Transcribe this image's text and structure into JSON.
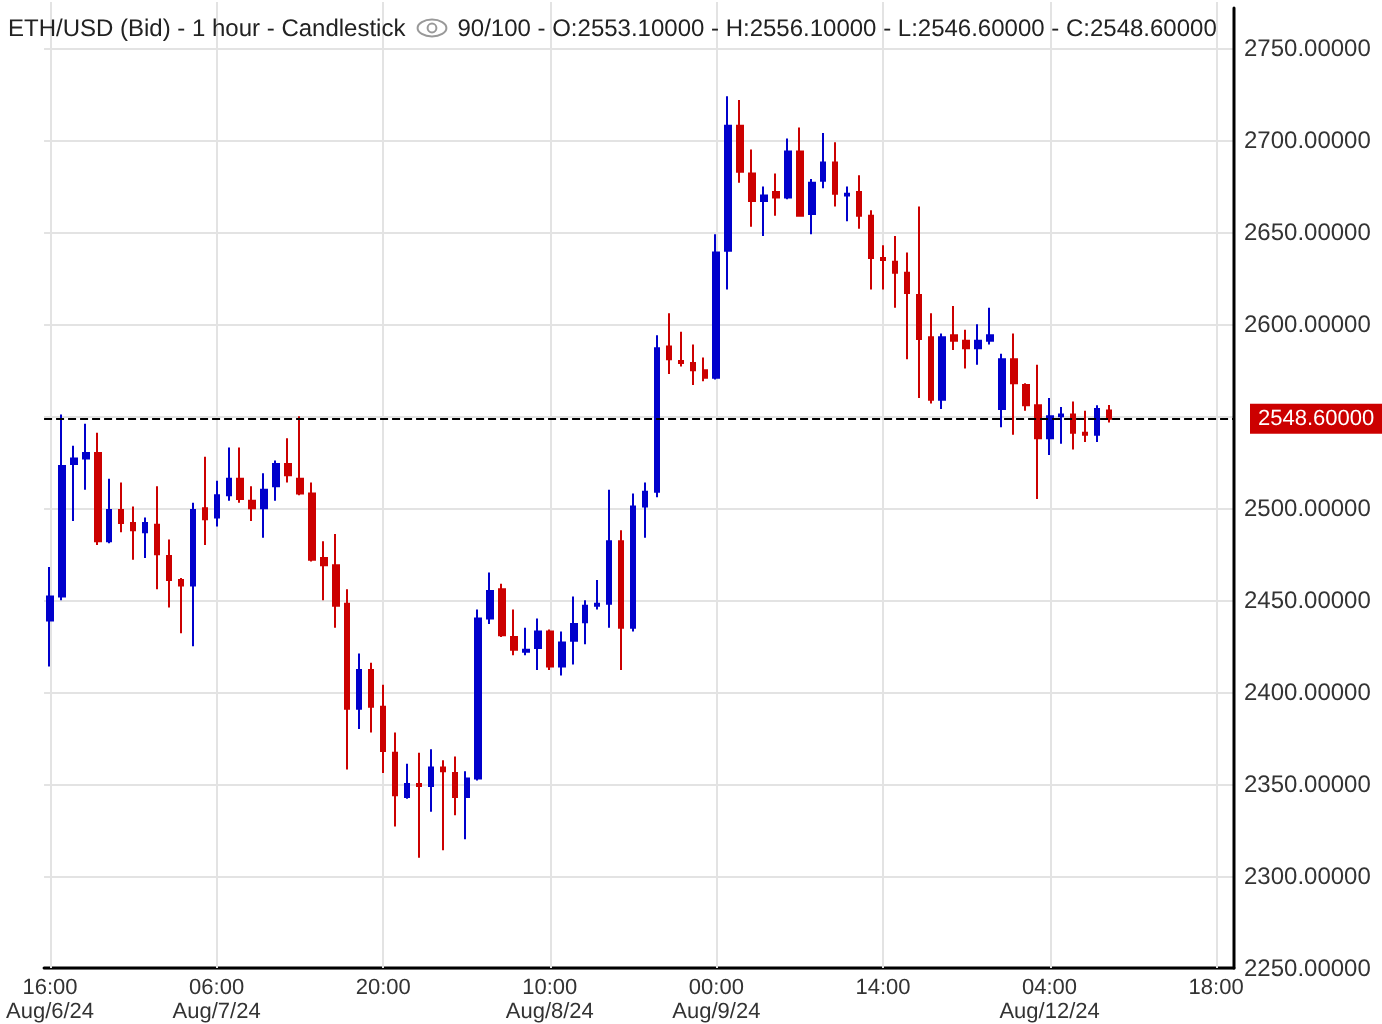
{
  "chart_data": {
    "type": "candlestick",
    "title": "ETH/USD (Bid) - 1 hour - Candlestick",
    "subtitle": "90/100 - O:2553.10000 - H:2556.10000 - L:2546.60000 - C:2548.60000",
    "categories": [
      "16:00\nAug/6/24",
      null,
      null,
      null,
      null,
      null,
      null,
      null,
      null,
      null,
      null,
      null,
      null,
      null,
      "06:00\nAug/7/24",
      null,
      null,
      null,
      null,
      null,
      null,
      null,
      null,
      null,
      null,
      null,
      null,
      null,
      "20:00",
      null,
      null,
      null,
      null,
      null,
      null,
      null,
      null,
      null,
      null,
      null,
      null,
      null,
      "10:00\nAug/8/24",
      null,
      null,
      null,
      null,
      null,
      null,
      null,
      null,
      null,
      null,
      null,
      null,
      null,
      "00:00\nAug/9/24",
      null,
      null,
      null,
      null,
      null,
      null,
      null,
      null,
      null,
      null,
      null,
      null,
      null,
      "14:00",
      null,
      null,
      null,
      null,
      null,
      null,
      null,
      null,
      null,
      null,
      null,
      null,
      null,
      "04:00\nAug/12/24",
      null,
      null,
      null,
      null,
      null,
      null,
      null,
      null,
      null,
      null,
      null,
      null,
      null,
      "18:00",
      null
    ],
    "ohlc": [
      [
        2439,
        2468,
        2414,
        2452
      ],
      [
        2452,
        2551,
        2450,
        2523
      ],
      [
        2524,
        2534,
        2493,
        2527
      ],
      [
        2527,
        2546,
        2510,
        2530
      ],
      [
        2530,
        2541,
        2480,
        2482
      ],
      [
        2482,
        2516,
        2481,
        2499
      ],
      [
        2499,
        2514,
        2487,
        2492
      ],
      [
        2492,
        2501,
        2472,
        2488
      ],
      [
        2487,
        2495,
        2473,
        2492
      ],
      [
        2491,
        2512,
        2456,
        2475
      ],
      [
        2474,
        2483,
        2446,
        2461
      ],
      [
        2461,
        2462,
        2432,
        2458
      ],
      [
        2458,
        2503,
        2425,
        2499
      ],
      [
        2500,
        2528,
        2480,
        2494
      ],
      [
        2495,
        2515,
        2490,
        2507
      ],
      [
        2507,
        2533,
        2504,
        2516
      ],
      [
        2516,
        2533,
        2503,
        2505
      ],
      [
        2504,
        2512,
        2493,
        2500
      ],
      [
        2500,
        2519,
        2484,
        2510
      ],
      [
        2512,
        2526,
        2504,
        2524
      ],
      [
        2524,
        2538,
        2514,
        2518
      ],
      [
        2516,
        2550,
        2507,
        2508
      ],
      [
        2508,
        2514,
        2471,
        2472
      ],
      [
        2473,
        2482,
        2450,
        2469
      ],
      [
        2469,
        2486,
        2435,
        2447
      ],
      [
        2448,
        2456,
        2358,
        2391
      ],
      [
        2391,
        2421,
        2380,
        2412
      ],
      [
        2412,
        2416,
        2378,
        2392
      ],
      [
        2392,
        2404,
        2356,
        2368
      ],
      [
        2367,
        2378,
        2327,
        2344
      ],
      [
        2343,
        2361,
        2342,
        2350
      ],
      [
        2350,
        2367,
        2310,
        2349
      ],
      [
        2349,
        2369,
        2335,
        2359
      ],
      [
        2359,
        2363,
        2314,
        2357
      ],
      [
        2356,
        2365,
        2333,
        2343
      ],
      [
        2343,
        2357,
        2320,
        2353
      ],
      [
        2353,
        2445,
        2352,
        2440
      ],
      [
        2440,
        2465,
        2437,
        2455
      ],
      [
        2456,
        2459,
        2430,
        2431
      ],
      [
        2430,
        2445,
        2420,
        2423
      ],
      [
        2422,
        2435,
        2420,
        2423
      ],
      [
        2424,
        2440,
        2412,
        2433
      ],
      [
        2433,
        2434,
        2412,
        2414
      ],
      [
        2414,
        2433,
        2409,
        2427
      ],
      [
        2428,
        2452,
        2415,
        2437
      ],
      [
        2438,
        2450,
        2426,
        2447
      ],
      [
        2447,
        2461,
        2445,
        2448
      ],
      [
        2448,
        2510,
        2435,
        2482
      ],
      [
        2482,
        2488,
        2412,
        2435
      ],
      [
        2435,
        2508,
        2433,
        2501
      ],
      [
        2501,
        2514,
        2484,
        2509
      ],
      [
        2509,
        2594,
        2506,
        2587
      ],
      [
        2588,
        2606,
        2573,
        2581
      ],
      [
        2580,
        2596,
        2577,
        2579
      ],
      [
        2579,
        2589,
        2567,
        2575
      ],
      [
        2575,
        2582,
        2569,
        2571
      ],
      [
        2571,
        2649,
        2570,
        2639
      ],
      [
        2640,
        2724,
        2619,
        2708
      ],
      [
        2708,
        2722,
        2677,
        2683
      ],
      [
        2682,
        2695,
        2653,
        2667
      ],
      [
        2667,
        2675,
        2648,
        2670
      ],
      [
        2672,
        2682,
        2659,
        2669
      ],
      [
        2669,
        2701,
        2668,
        2694
      ],
      [
        2694,
        2707,
        2659,
        2659
      ],
      [
        2660,
        2679,
        2649,
        2677
      ],
      [
        2678,
        2704,
        2674,
        2688
      ],
      [
        2688,
        2699,
        2664,
        2671
      ],
      [
        2670,
        2675,
        2656,
        2671
      ],
      [
        2672,
        2681,
        2652,
        2659
      ],
      [
        2659,
        2662,
        2619,
        2636
      ],
      [
        2636,
        2643,
        2619,
        2635
      ],
      [
        2634,
        2648,
        2609,
        2628
      ],
      [
        2628,
        2639,
        2581,
        2617
      ],
      [
        2616,
        2664,
        2560,
        2592
      ],
      [
        2593,
        2606,
        2557,
        2559
      ],
      [
        2559,
        2595,
        2554,
        2593
      ],
      [
        2594,
        2610,
        2586,
        2591
      ],
      [
        2591,
        2597,
        2576,
        2587
      ],
      [
        2587,
        2600,
        2578,
        2591
      ],
      [
        2591,
        2609,
        2589,
        2594
      ],
      [
        2554,
        2584,
        2544,
        2581
      ],
      [
        2581,
        2595,
        2540,
        2568
      ],
      [
        2567,
        2568,
        2553,
        2556
      ],
      [
        2556,
        2578,
        2505,
        2538
      ],
      [
        2538,
        2560,
        2529,
        2550
      ],
      [
        2550,
        2555,
        2535,
        2551
      ],
      [
        2551,
        2558,
        2532,
        2541
      ],
      [
        2541,
        2553,
        2536,
        2540
      ],
      [
        2540,
        2556,
        2536,
        2554
      ],
      [
        2553.1,
        2556.1,
        2546.6,
        2548.6
      ],
      null,
      null,
      null,
      null,
      null,
      null,
      null,
      null,
      null,
      null
    ],
    "colors": [
      "#0000cc",
      "#0000cc",
      "#0000cc",
      "#0000cc",
      "#cc0000",
      "#0000cc",
      "#cc0000",
      "#cc0000",
      "#0000cc",
      "#cc0000",
      "#cc0000",
      "#cc0000",
      "#0000cc",
      "#cc0000",
      "#0000cc",
      "#0000cc",
      "#cc0000",
      "#cc0000",
      "#0000cc",
      "#0000cc",
      "#cc0000",
      "#cc0000",
      "#cc0000",
      "#cc0000",
      "#cc0000",
      "#cc0000",
      "#0000cc",
      "#cc0000",
      "#cc0000",
      "#cc0000",
      "#0000cc",
      "#cc0000",
      "#0000cc",
      "#cc0000",
      "#cc0000",
      "#0000cc",
      "#0000cc",
      "#0000cc",
      "#cc0000",
      "#cc0000",
      "#0000cc",
      "#0000cc",
      "#cc0000",
      "#0000cc",
      "#0000cc",
      "#0000cc",
      "#0000cc",
      "#0000cc",
      "#cc0000",
      "#0000cc",
      "#0000cc",
      "#0000cc",
      "#cc0000",
      "#cc0000",
      "#cc0000",
      "#cc0000",
      "#0000cc",
      "#0000cc",
      "#cc0000",
      "#cc0000",
      "#0000cc",
      "#cc0000",
      "#0000cc",
      "#cc0000",
      "#0000cc",
      "#0000cc",
      "#cc0000",
      "#0000cc",
      "#cc0000",
      "#cc0000",
      "#cc0000",
      "#cc0000",
      "#cc0000",
      "#cc0000",
      "#cc0000",
      "#0000cc",
      "#cc0000",
      "#cc0000",
      "#0000cc",
      "#0000cc",
      "#0000cc",
      "#cc0000",
      "#cc0000",
      "#cc0000",
      "#0000cc",
      "#0000cc",
      "#cc0000",
      "#cc0000",
      "#0000cc",
      "#cc0000",
      null,
      null,
      null,
      null,
      null,
      null,
      null,
      null,
      null,
      null
    ],
    "ylim": [
      2250,
      2772
    ],
    "yticks": [
      {
        "value": 2250,
        "label": "2250.00000"
      },
      {
        "value": 2300,
        "label": "2300.00000"
      },
      {
        "value": 2350,
        "label": "2350.00000"
      },
      {
        "value": 2400,
        "label": "2400.00000"
      },
      {
        "value": 2450,
        "label": "2450.00000"
      },
      {
        "value": 2500,
        "label": "2500.00000"
      },
      {
        "value": 2550,
        "label": null
      },
      {
        "value": 2600,
        "label": "2600.00000"
      },
      {
        "value": 2650,
        "label": "2650.00000"
      },
      {
        "value": 2700,
        "label": "2700.00000"
      },
      {
        "value": 2750,
        "label": "2750.00000"
      }
    ],
    "ref_lines": [
      {
        "axis": "y",
        "value": 2548.6,
        "label": "2548.60000",
        "color": "#000000",
        "line_style": "dashed"
      }
    ],
    "grid": true
  }
}
